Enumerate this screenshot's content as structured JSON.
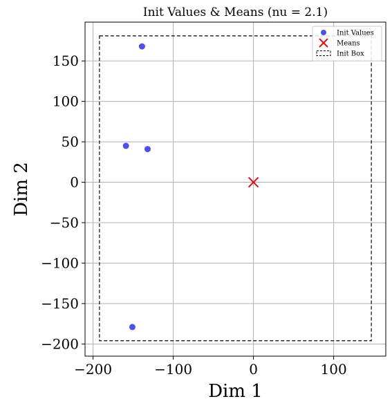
{
  "chart_data": {
    "type": "scatter",
    "title": "Init Values & Means (nu = 2.1)",
    "xlabel": "Dim 1",
    "ylabel": "Dim 2",
    "xlim": [
      -210,
      165
    ],
    "ylim": [
      -215,
      198
    ],
    "grid": true,
    "legend_placement": "top-right",
    "xticks": [
      -200,
      -100,
      0,
      100
    ],
    "xtick_labels": [
      "−200",
      "−100",
      "0",
      "100"
    ],
    "yticks": [
      150,
      100,
      50,
      0,
      -50,
      -100,
      -150,
      -200
    ],
    "ytick_labels": [
      "150",
      "100",
      "50",
      "0",
      "−50",
      "−100",
      "−150",
      "−200"
    ],
    "series": [
      {
        "name": "Init Values",
        "kind": "points",
        "color": "#3030e8",
        "points": [
          [
            -139,
            168
          ],
          [
            -159,
            45
          ],
          [
            -132,
            41
          ],
          [
            -151,
            -179
          ]
        ]
      },
      {
        "name": "Means",
        "kind": "x-marker",
        "color": "#e01010",
        "points": [
          [
            0,
            0
          ]
        ]
      },
      {
        "name": "Init Box",
        "kind": "box",
        "color": "#000000",
        "x_range": [
          -192,
          147
        ],
        "y_range": [
          -196,
          181
        ]
      }
    ]
  }
}
